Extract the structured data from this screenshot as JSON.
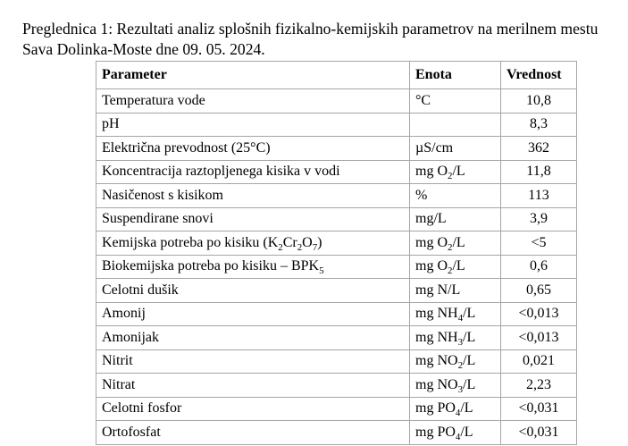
{
  "caption": "Preglednica 1: Rezultati analiz splošnih fizikalno-kemijskih parametrov na merilnem mestu Sava Dolinka-Moste dne 09. 05. 2024.",
  "table": {
    "headers": [
      "Parameter",
      "Enota",
      "Vrednost"
    ],
    "rows": [
      {
        "parameter": "Temperatura vode",
        "unit": "°C",
        "value": "10,8"
      },
      {
        "parameter": "pH",
        "unit": "",
        "value": "8,3"
      },
      {
        "parameter": "Električna prevodnost (25°C)",
        "unit": "µS/cm",
        "value": "362"
      },
      {
        "parameter": "Koncentracija raztopljenega kisika v vodi",
        "unit": "mg O~2~/L",
        "value": "11,8"
      },
      {
        "parameter": "Nasičenost s kisikom",
        "unit": "%",
        "value": "113"
      },
      {
        "parameter": "Suspendirane snovi",
        "unit": "mg/L",
        "value": "3,9"
      },
      {
        "parameter": "Kemijska potreba po kisiku (K~2~Cr~2~O~7~)",
        "unit": "mg O~2~/L",
        "value": "<5"
      },
      {
        "parameter": "Biokemijska potreba po kisiku – BPK~5~",
        "unit": "mg O~2~/L",
        "value": "0,6"
      },
      {
        "parameter": "Celotni dušik",
        "unit": "mg N/L",
        "value": "0,65"
      },
      {
        "parameter": "Amonij",
        "unit": "mg NH~4~/L",
        "value": "<0,013"
      },
      {
        "parameter": "Amonijak",
        "unit": "mg NH~3~/L",
        "value": "<0,013"
      },
      {
        "parameter": "Nitrit",
        "unit": "mg NO~2~/L",
        "value": "0,021"
      },
      {
        "parameter": "Nitrat",
        "unit": "mg NO~3~/L",
        "value": "2,23"
      },
      {
        "parameter": "Celotni fosfor",
        "unit": "mg PO~4~/L",
        "value": "<0,031"
      },
      {
        "parameter": "Ortofosfat",
        "unit": "mg PO~4~/L",
        "value": "<0,031"
      }
    ]
  },
  "colors": {
    "table_border": "#a6a6a6",
    "text": "#000000",
    "background": "#ffffff"
  }
}
